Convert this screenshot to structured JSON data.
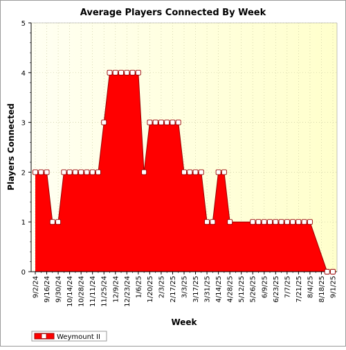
{
  "chart_data": {
    "type": "area",
    "title": "Average Players Connected By Week",
    "xlabel": "Week",
    "ylabel": "Players Connected",
    "ylim": [
      0,
      5
    ],
    "yticks": [
      0,
      1,
      2,
      3,
      4,
      5
    ],
    "grid": true,
    "legend_position": "bottom-left",
    "colors": {
      "area": "#ff0000",
      "line": "#990000",
      "plot_bg_left": "#fffff2",
      "plot_bg_right": "#ffffcc",
      "grid": "#c9c9a0",
      "axis": "#000000",
      "marker_fill": "#ffffff"
    },
    "x": [
      "9/2/24",
      "9/9/24",
      "9/16/24",
      "9/23/24",
      "9/30/24",
      "10/7/24",
      "10/14/24",
      "10/21/24",
      "10/28/24",
      "11/4/24",
      "11/11/24",
      "11/18/24",
      "11/25/24",
      "12/2/24",
      "12/9/24",
      "12/16/24",
      "12/23/24",
      "12/30/24",
      "1/6/25",
      "1/13/25",
      "1/20/25",
      "1/27/25",
      "2/3/25",
      "2/10/25",
      "2/17/25",
      "2/24/25",
      "3/3/25",
      "3/10/25",
      "3/17/25",
      "3/24/25",
      "3/31/25",
      "4/7/25",
      "4/14/25",
      "4/21/25",
      "4/28/25",
      "5/5/25",
      "5/12/25",
      "5/19/25",
      "5/26/25",
      "6/2/25",
      "6/9/25",
      "6/16/25",
      "6/23/25",
      "6/30/25",
      "7/7/25",
      "7/14/25",
      "7/21/25",
      "7/28/25",
      "8/4/25",
      "8/11/25",
      "8/18/25",
      "8/25/25",
      "9/1/25"
    ],
    "xtick_labels": [
      "9/2/24",
      "9/16/24",
      "9/30/24",
      "10/14/24",
      "10/28/24",
      "11/11/24",
      "11/25/24",
      "12/9/24",
      "12/23/24",
      "1/6/25",
      "1/20/25",
      "2/3/25",
      "2/17/25",
      "3/3/25",
      "3/17/25",
      "3/31/25",
      "4/14/25",
      "4/28/25",
      "5/12/25",
      "5/26/25",
      "6/9/25",
      "6/23/25",
      "7/7/25",
      "7/21/25",
      "8/4/25",
      "8/18/25",
      "9/1/25"
    ],
    "series": [
      {
        "name": "Weymount II",
        "values": [
          2,
          2,
          2,
          1,
          1,
          2,
          2,
          2,
          2,
          2,
          2,
          2,
          3,
          4,
          4,
          4,
          4,
          4,
          4,
          2,
          3,
          3,
          3,
          3,
          3,
          3,
          2,
          2,
          2,
          2,
          1,
          1,
          2,
          2,
          1,
          null,
          null,
          null,
          1,
          1,
          1,
          1,
          1,
          1,
          1,
          1,
          1,
          1,
          1,
          null,
          null,
          0,
          0
        ],
        "markers": [
          true,
          true,
          true,
          true,
          true,
          true,
          true,
          true,
          true,
          true,
          true,
          true,
          true,
          true,
          true,
          true,
          true,
          true,
          true,
          true,
          true,
          true,
          true,
          true,
          true,
          true,
          true,
          true,
          true,
          true,
          true,
          true,
          true,
          true,
          true,
          false,
          false,
          false,
          true,
          true,
          true,
          true,
          true,
          true,
          true,
          true,
          true,
          true,
          true,
          false,
          false,
          true,
          true
        ]
      }
    ]
  }
}
